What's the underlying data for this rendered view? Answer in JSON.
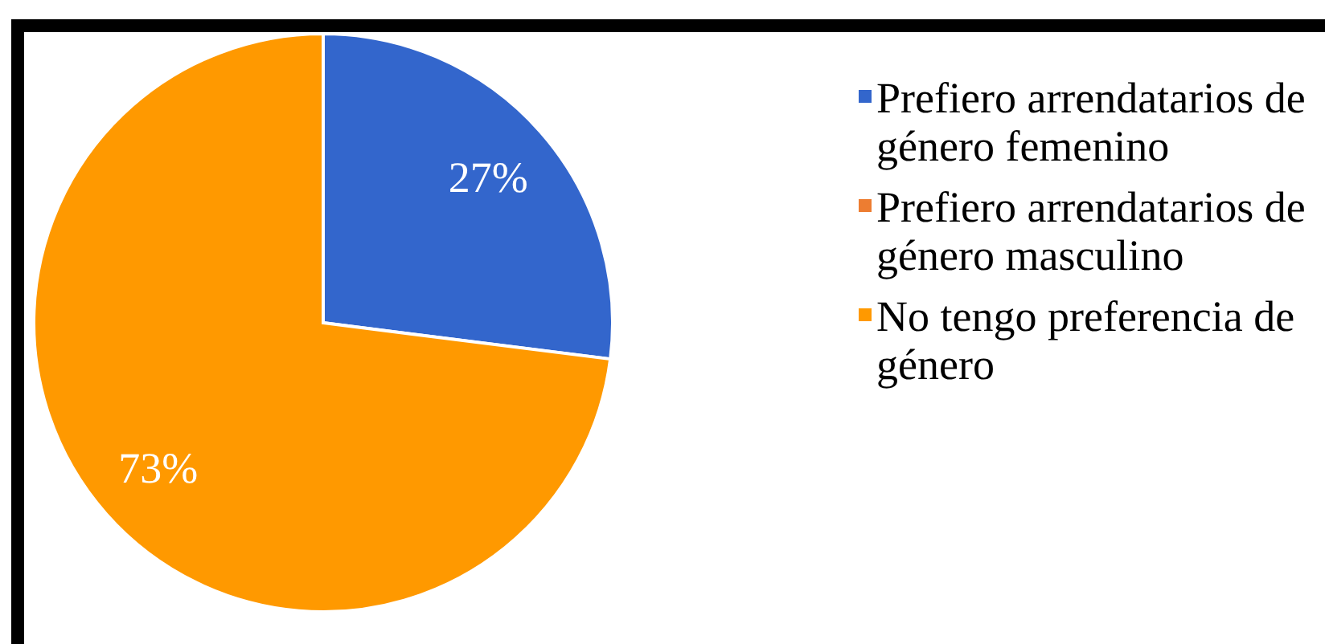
{
  "chart_data": {
    "type": "pie",
    "categories": [
      "Prefiero arrendatarios de género femenino",
      "Prefiero arrendatarios de género masculino",
      "No tengo preferencia de género"
    ],
    "values": [
      27,
      0,
      73
    ],
    "colors": [
      "#3366cc",
      "#ed7d31",
      "#ff9900"
    ],
    "value_labels": [
      "27%",
      null,
      "73%"
    ],
    "legend": "right"
  }
}
